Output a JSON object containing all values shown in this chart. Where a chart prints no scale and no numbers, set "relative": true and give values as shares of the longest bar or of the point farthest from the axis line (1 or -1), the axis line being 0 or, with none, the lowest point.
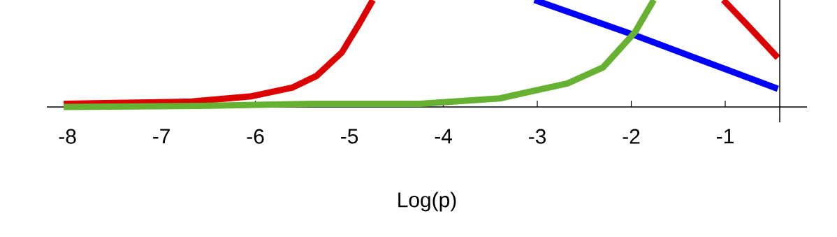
{
  "chart_data": {
    "type": "line",
    "relative": true,
    "xlabel": "Log(p)",
    "xlim": [
      -8.22,
      -0.13
    ],
    "xticks": [
      -8,
      -7,
      -6,
      -5,
      -4,
      -3,
      -2,
      -1
    ],
    "series": [
      {
        "color": "#dd0000",
        "x": [
          -8.04,
          -6.68,
          -6.04,
          -5.61,
          -5.35,
          -5.08,
          -4.9,
          -4.75,
          -3.0,
          -1.02,
          -0.78,
          -0.44
        ],
        "values": [
          0.03,
          0.05,
          0.1,
          0.18,
          0.29,
          0.51,
          0.77,
          1.0,
          null,
          1.0,
          0.78,
          0.46
        ]
      },
      {
        "color": "#0000ff",
        "x": [
          -3.03,
          -1.96,
          -1.11,
          -0.44
        ],
        "values": [
          1.0,
          0.67,
          0.39,
          0.17
        ]
      },
      {
        "color": "#66b032",
        "x": [
          -8.04,
          -6.6,
          -5.4,
          -4.25,
          -3.4,
          -2.68,
          -2.3,
          -1.96,
          -1.76
        ],
        "values": [
          0.0,
          0.01,
          0.03,
          0.03,
          0.08,
          0.22,
          0.37,
          0.7,
          1.0
        ]
      }
    ],
    "ref_lines": [
      {
        "axis": "x",
        "value": -0.42,
        "color": "#000000"
      }
    ]
  }
}
